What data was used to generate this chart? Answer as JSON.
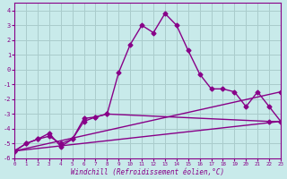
{
  "background_color": "#c8eaea",
  "grid_color": "#aacccc",
  "line_color": "#880088",
  "xlim": [
    0,
    23
  ],
  "ylim": [
    -6,
    4.5
  ],
  "xlabel": "Windchill (Refroidissement éolien,°C)",
  "xticks": [
    0,
    1,
    2,
    3,
    4,
    5,
    6,
    7,
    8,
    9,
    10,
    11,
    12,
    13,
    14,
    15,
    16,
    17,
    18,
    19,
    20,
    21,
    22,
    23
  ],
  "yticks": [
    -6,
    -5,
    -4,
    -3,
    -2,
    -1,
    0,
    1,
    2,
    3,
    4
  ],
  "series1_x": [
    0,
    1,
    2,
    3,
    4,
    5,
    6,
    7,
    8,
    9,
    10,
    11,
    12,
    13,
    14,
    15,
    16,
    17,
    18,
    19,
    20,
    21,
    22,
    23
  ],
  "series1_y": [
    -5.5,
    -5.0,
    -4.7,
    -4.5,
    -5.0,
    -4.7,
    -3.3,
    -3.2,
    -3.0,
    -0.2,
    1.7,
    3.0,
    2.5,
    3.8,
    3.0,
    1.3,
    -0.3,
    -1.3,
    -1.3,
    -1.5,
    -2.5,
    -1.5,
    -2.5,
    -3.5
  ],
  "series2_x": [
    0,
    1,
    2,
    3,
    4,
    5,
    6,
    7,
    8,
    22,
    23
  ],
  "series2_y": [
    -5.5,
    -5.0,
    -4.7,
    -4.3,
    -5.2,
    -4.7,
    -3.5,
    -3.2,
    -3.0,
    -3.5,
    -3.5
  ],
  "series3_x": [
    0,
    23
  ],
  "series3_y": [
    -5.5,
    -3.5
  ],
  "series4_x": [
    0,
    23
  ],
  "series4_y": [
    -5.5,
    -1.5
  ],
  "markersize": 2.5,
  "linewidth": 1.0
}
